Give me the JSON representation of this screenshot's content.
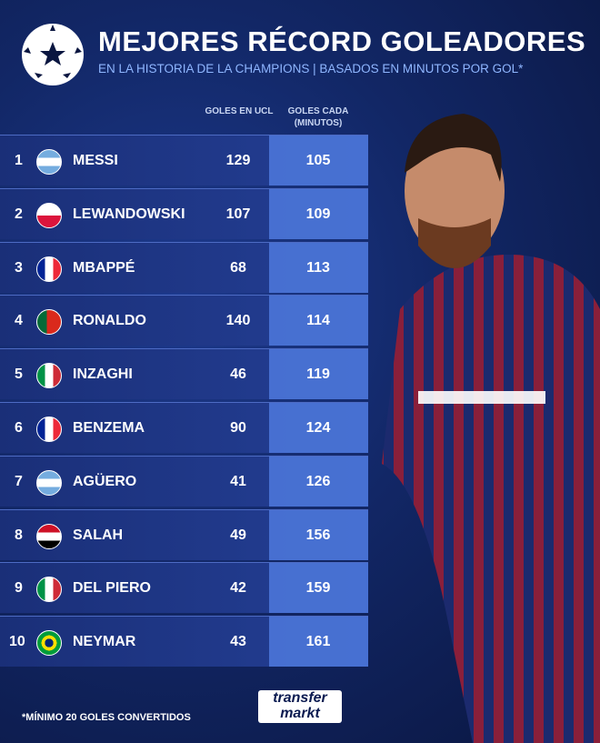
{
  "header": {
    "title": "MEJORES RÉCORD GOLEADORES",
    "subtitle": "EN LA HISTORIA DE LA CHAMPIONS | BASADOS EN MINUTOS POR GOL*"
  },
  "table": {
    "columns": [
      "GOLES EN UCL",
      "GOLES CADA (MINUTOS)"
    ],
    "rows": [
      [
        1,
        "MESSI",
        129,
        105
      ],
      [
        2,
        "LEWANDOWSKI",
        107,
        109
      ],
      [
        3,
        "MBAPPÉ",
        68,
        113
      ],
      [
        4,
        "RONALDO",
        140,
        114
      ],
      [
        5,
        "INZAGHI",
        46,
        119
      ],
      [
        6,
        "BENZEMA",
        90,
        124
      ],
      [
        7,
        "AGÜERO",
        41,
        126
      ],
      [
        8,
        "SALAH",
        49,
        156
      ],
      [
        9,
        "DEL PIERO",
        42,
        159
      ],
      [
        10,
        "NEYMAR",
        43,
        161
      ]
    ]
  },
  "footer": {
    "note": "*MÍNIMO 20 GOLES CONVERTIDOS",
    "logo": [
      "transfer",
      "markt"
    ]
  }
}
